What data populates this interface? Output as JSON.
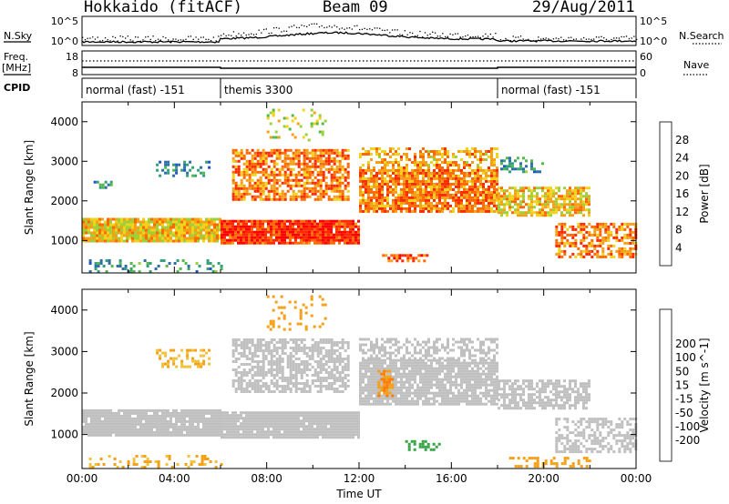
{
  "header": {
    "station": "Hokkaido (fitACF)",
    "beam": "Beam 09",
    "date": "29/Aug/2011"
  },
  "strip_labels": {
    "nsky": "N.Sky",
    "nsky_ticks": [
      "10^5",
      "10^0"
    ],
    "nsearch": "N.Search",
    "nsearch_ticks": [
      "10^5",
      "10^0"
    ],
    "freq": "Freq.",
    "freq_unit": "[MHz]",
    "freq_ticks": [
      "18",
      "8"
    ],
    "nave": "Nave",
    "nave_ticks": [
      "60",
      "0"
    ],
    "cpid": "CPID"
  },
  "cpid_segments": [
    {
      "label": "normal (fast) -151",
      "start_hour": 0,
      "end_hour": 6
    },
    {
      "label": "themis 3300",
      "start_hour": 6,
      "end_hour": 18
    },
    {
      "label": "normal (fast) -151",
      "start_hour": 18,
      "end_hour": 24
    }
  ],
  "colors": {
    "power": [
      "#0022ee",
      "#1e55c8",
      "#2f6fa8",
      "#35a07a",
      "#55b84a",
      "#9bd23a",
      "#f2d21a",
      "#f5a016",
      "#ff6a00",
      "#ff2a00",
      "#ff0000"
    ],
    "velocity": [
      "#ff0000",
      "#ff4a00",
      "#ff7a00",
      "#f5a016",
      "#f2c23a",
      "#c0c0c0",
      "#66c233",
      "#3aa64a",
      "#2f8a7a",
      "#2a5cb0",
      "#1a36cc"
    ]
  },
  "chart_data": [
    {
      "type": "heatmap",
      "title": "Power",
      "xlabel": "Time UT",
      "ylabel": "Slant Range [km]",
      "x_range_hours": [
        0,
        24
      ],
      "x_ticks": [
        "00:00",
        "04:00",
        "08:00",
        "12:00",
        "16:00",
        "20:00",
        "00:00"
      ],
      "ylim": [
        180,
        4500
      ],
      "y_ticks": [
        1000,
        2000,
        3000,
        4000
      ],
      "colorbar": {
        "label": "Power [dB]",
        "ticks": [
          4,
          8,
          12,
          16,
          20,
          24,
          28
        ],
        "range": [
          0,
          32
        ]
      },
      "regions": [
        {
          "t0": 0,
          "t1": 6,
          "r0": 950,
          "r1": 1550,
          "value": 20,
          "cover": 0.95
        },
        {
          "t0": 0.3,
          "t1": 6,
          "r0": 180,
          "r1": 500,
          "value": 10,
          "cover": 0.25
        },
        {
          "t0": 3.2,
          "t1": 5.5,
          "r0": 2600,
          "r1": 3000,
          "value": 8,
          "cover": 0.4
        },
        {
          "t0": 0.5,
          "t1": 1.5,
          "r0": 2300,
          "r1": 2500,
          "value": 9,
          "cover": 0.35
        },
        {
          "t0": 6,
          "t1": 12,
          "r0": 900,
          "r1": 1500,
          "value": 28,
          "cover": 0.95
        },
        {
          "t0": 6.5,
          "t1": 11.5,
          "r0": 2000,
          "r1": 3300,
          "value": 24,
          "cover": 0.7
        },
        {
          "t0": 12,
          "t1": 18,
          "r0": 1700,
          "r1": 2800,
          "value": 24,
          "cover": 0.85
        },
        {
          "t0": 12,
          "t1": 18,
          "r0": 2800,
          "r1": 3300,
          "value": 22,
          "cover": 0.5
        },
        {
          "t0": 8,
          "t1": 10.5,
          "r0": 3500,
          "r1": 4300,
          "value": 18,
          "cover": 0.2
        },
        {
          "t0": 13,
          "t1": 15,
          "r0": 450,
          "r1": 650,
          "value": 26,
          "cover": 0.5
        },
        {
          "t0": 18,
          "t1": 22,
          "r0": 1600,
          "r1": 2300,
          "value": 20,
          "cover": 0.7
        },
        {
          "t0": 20.5,
          "t1": 24,
          "r0": 550,
          "r1": 1400,
          "value": 24,
          "cover": 0.6
        },
        {
          "t0": 18,
          "t1": 20,
          "r0": 2700,
          "r1": 3100,
          "value": 10,
          "cover": 0.35
        }
      ]
    },
    {
      "type": "heatmap",
      "title": "Velocity",
      "xlabel": "Time UT",
      "ylabel": "Slant Range [km]",
      "x_range_hours": [
        0,
        24
      ],
      "x_ticks": [
        "00:00",
        "04:00",
        "08:00",
        "12:00",
        "16:00",
        "20:00",
        "00:00"
      ],
      "ylim": [
        180,
        4500
      ],
      "y_ticks": [
        1000,
        2000,
        3000,
        4000
      ],
      "colorbar": {
        "label": "Velocity [m s^-1]",
        "ticks": [
          -200,
          -100,
          -50,
          -15,
          15,
          50,
          100,
          200
        ]
      },
      "regions": [
        {
          "t0": 0,
          "t1": 6,
          "r0": 950,
          "r1": 1550,
          "value": 0,
          "cover": 0.95
        },
        {
          "t0": 0.3,
          "t1": 6,
          "r0": 180,
          "r1": 500,
          "value": -30,
          "cover": 0.25
        },
        {
          "t0": 3.2,
          "t1": 5.5,
          "r0": 2600,
          "r1": 3000,
          "value": -30,
          "cover": 0.4
        },
        {
          "t0": 6,
          "t1": 12,
          "r0": 900,
          "r1": 1500,
          "value": 0,
          "cover": 0.95
        },
        {
          "t0": 6.5,
          "t1": 11.5,
          "r0": 2000,
          "r1": 3300,
          "value": 0,
          "cover": 0.65
        },
        {
          "t0": 12,
          "t1": 18,
          "r0": 1700,
          "r1": 2800,
          "value": 0,
          "cover": 0.85
        },
        {
          "t0": 12,
          "t1": 18,
          "r0": 2800,
          "r1": 3300,
          "value": 0,
          "cover": 0.5
        },
        {
          "t0": 12.8,
          "t1": 13.4,
          "r0": 1900,
          "r1": 2500,
          "value": -50,
          "cover": 0.7
        },
        {
          "t0": 8,
          "t1": 10.5,
          "r0": 3500,
          "r1": 4300,
          "value": -40,
          "cover": 0.2
        },
        {
          "t0": 14,
          "t1": 15.5,
          "r0": 600,
          "r1": 800,
          "value": 40,
          "cover": 0.5
        },
        {
          "t0": 18,
          "t1": 22,
          "r0": 1600,
          "r1": 2300,
          "value": 0,
          "cover": 0.7
        },
        {
          "t0": 20.5,
          "t1": 24,
          "r0": 550,
          "r1": 1400,
          "value": 0,
          "cover": 0.55
        },
        {
          "t0": 18.5,
          "t1": 22,
          "r0": 200,
          "r1": 450,
          "value": -40,
          "cover": 0.35
        }
      ]
    }
  ]
}
